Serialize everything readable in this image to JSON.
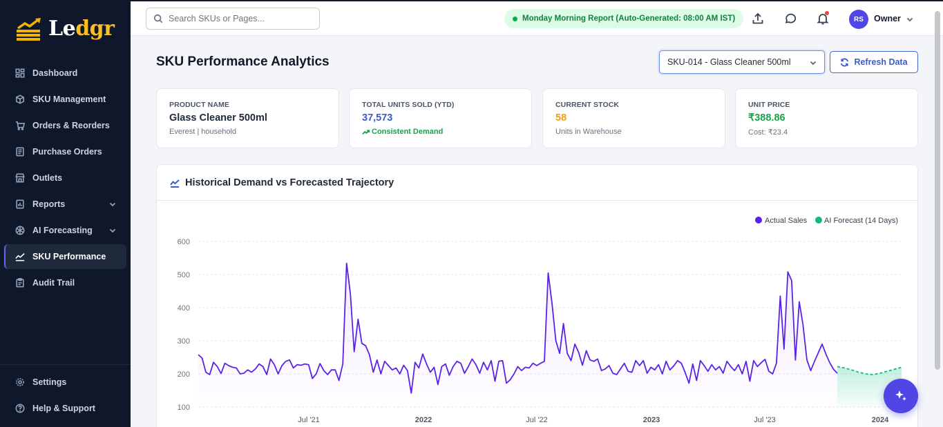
{
  "brand": {
    "name_main": "Le",
    "name_accent": "dgr"
  },
  "sidebar": {
    "items": [
      {
        "label": "Dashboard"
      },
      {
        "label": "SKU Management"
      },
      {
        "label": "Orders & Reorders"
      },
      {
        "label": "Purchase Orders"
      },
      {
        "label": "Outlets"
      },
      {
        "label": "Reports"
      },
      {
        "label": "AI Forecasting"
      },
      {
        "label": "SKU Performance",
        "active": true
      },
      {
        "label": "Audit Trail"
      }
    ],
    "bottom": [
      {
        "label": "Settings"
      },
      {
        "label": "Help & Support"
      }
    ]
  },
  "topbar": {
    "search_placeholder": "Search SKUs or Pages...",
    "report_pill": "Monday Morning Report (Auto-Generated: 08:00 AM IST)",
    "avatar_initials": "RS",
    "user_name": "Owner"
  },
  "page": {
    "title": "SKU Performance Analytics",
    "sku_selected": "SKU-014 - Glass Cleaner 500ml",
    "refresh_label": "Refresh Data"
  },
  "cards": {
    "product": {
      "label": "PRODUCT NAME",
      "value": "Glass Cleaner 500ml",
      "sub": "Everest | household"
    },
    "units": {
      "label": "TOTAL UNITS SOLD (YTD)",
      "value": "37,573",
      "sub": "Consistent Demand"
    },
    "stock": {
      "label": "CURRENT STOCK",
      "value": "58",
      "sub": "Units in Warehouse"
    },
    "price": {
      "label": "UNIT PRICE",
      "value": "₹388.86",
      "sub": "Cost: ₹23.4"
    }
  },
  "colors": {
    "primary": "#4f46e5",
    "actual": "#5b21e6",
    "forecast": "#10b981",
    "units_value": "#3b5bcc",
    "stock_value": "#f59e0b",
    "price_value": "#16a34a",
    "sidebar_bg": "#0f172a"
  },
  "chart_data": {
    "type": "line",
    "title": "Historical Demand vs Forecasted Trajectory",
    "legend_position": "top-right",
    "yticks": [
      100,
      200,
      300,
      400,
      500,
      600
    ],
    "ylim": [
      100,
      600
    ],
    "xtick_labels": [
      "Jul '21",
      "2022",
      "Jul '22",
      "2023",
      "Jul '23",
      "2024"
    ],
    "series": [
      {
        "name": "Actual Sales",
        "values": [
          258,
          248,
          205,
          198,
          235,
          222,
          201,
          232,
          225,
          220,
          218,
          200,
          202,
          212,
          205,
          215,
          230,
          222,
          198,
          245,
          228,
          200,
          225,
          238,
          242,
          218,
          228,
          226,
          230,
          228,
          186,
          200,
          231,
          210,
          198,
          212,
          212,
          180,
          230,
          534,
          442,
          267,
          365,
          292,
          285,
          258,
          205,
          242,
          200,
          238,
          225,
          212,
          218,
          200,
          226,
          210,
          142,
          235,
          218,
          260,
          230,
          205,
          220,
          168,
          222,
          230,
          196,
          222,
          238,
          232,
          202,
          222,
          245,
          228,
          202,
          235,
          212,
          240,
          178,
          238,
          240,
          172,
          182,
          200,
          222,
          210,
          220,
          218,
          232,
          225,
          232,
          238,
          505,
          412,
          300,
          262,
          352,
          262,
          240,
          290,
          265,
          226,
          270,
          242,
          238,
          245,
          210,
          215,
          225,
          202,
          198,
          215,
          232,
          208,
          205,
          240,
          225,
          240,
          202,
          220,
          212,
          228,
          200,
          238,
          212,
          224,
          240,
          232,
          204,
          172,
          230,
          180,
          240,
          225,
          208,
          228,
          212,
          222,
          202,
          238,
          222,
          210,
          228,
          200,
          238,
          178,
          240,
          222,
          234,
          244,
          208,
          200,
          232,
          435,
          275,
          508,
          482,
          242,
          418,
          348,
          242,
          210,
          238,
          264,
          290,
          260,
          234,
          214,
          202
        ]
      },
      {
        "name": "AI Forecast (14 Days)",
        "values": [
          222,
          218,
          212,
          205,
          200,
          198,
          202,
          208,
          214,
          220
        ]
      }
    ]
  }
}
